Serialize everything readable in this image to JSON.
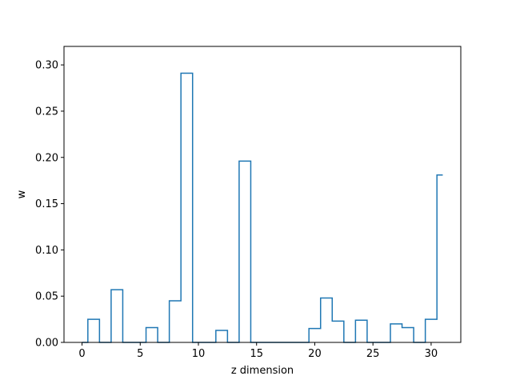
{
  "chart_data": {
    "type": "step",
    "title": "",
    "xlabel": "z dimension",
    "ylabel": "w",
    "xlim": [
      -1.55,
      32.55
    ],
    "ylim": [
      0,
      0.32
    ],
    "xticks": [
      0,
      5,
      10,
      15,
      20,
      25,
      30
    ],
    "xtick_labels": [
      "0",
      "5",
      "10",
      "15",
      "20",
      "25",
      "30"
    ],
    "yticks": [
      0.0,
      0.05,
      0.1,
      0.15,
      0.2,
      0.25,
      0.3
    ],
    "ytick_labels": [
      "0.00",
      "0.05",
      "0.10",
      "0.15",
      "0.20",
      "0.25",
      "0.30"
    ],
    "grid": false,
    "line_color": "#1f77b4",
    "step_where": "mid",
    "series": [
      {
        "x": [
          0,
          1,
          2,
          3,
          4,
          5,
          6,
          7,
          8,
          9,
          10,
          11,
          12,
          13,
          14,
          15,
          16,
          17,
          18,
          19,
          20,
          21,
          22,
          23,
          24,
          25,
          26,
          27,
          28,
          29,
          30,
          31
        ],
        "values": [
          0.0,
          0.025,
          0.0,
          0.057,
          0.0,
          0.0,
          0.016,
          0.0,
          0.045,
          0.291,
          0.0,
          0.0,
          0.013,
          0.0,
          0.196,
          0.0,
          0.0,
          0.0,
          0.0,
          0.0,
          0.015,
          0.048,
          0.023,
          0.0,
          0.024,
          0.0,
          0.0,
          0.02,
          0.016,
          0.0,
          0.025,
          0.181
        ]
      }
    ]
  }
}
